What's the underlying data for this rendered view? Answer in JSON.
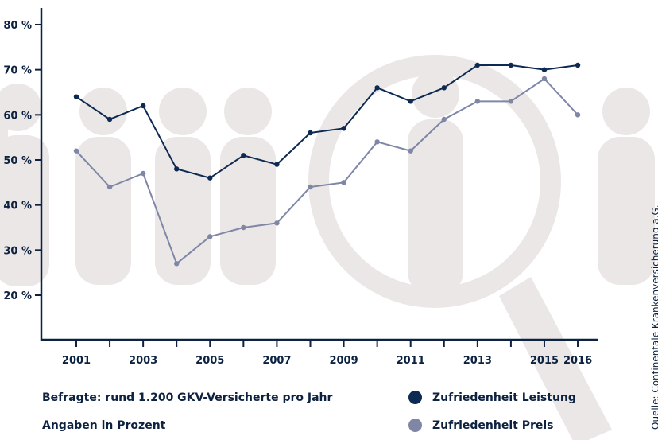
{
  "chart_data": {
    "type": "line",
    "x": [
      2001,
      2002,
      2003,
      2004,
      2005,
      2006,
      2007,
      2008,
      2009,
      2010,
      2011,
      2012,
      2013,
      2014,
      2015,
      2016
    ],
    "x_tick_labels": [
      "2001",
      "2003",
      "2005",
      "2007",
      "2009",
      "2011",
      "2013",
      "2015",
      "2016"
    ],
    "y_tick_labels": [
      "80 %",
      "70 %",
      "60 %",
      "50 %",
      "40 %",
      "30 %",
      "20 %"
    ],
    "y_ticks": [
      80,
      70,
      60,
      50,
      40,
      30,
      20
    ],
    "ylim": [
      10,
      82
    ],
    "grid": false,
    "legend_position": "bottom-right",
    "series": [
      {
        "name": "Zufriedenheit Leistung",
        "color": "#0d2a52",
        "values": [
          64,
          59,
          62,
          48,
          46,
          51,
          49,
          56,
          57,
          66,
          63,
          66,
          71,
          71,
          70,
          71
        ]
      },
      {
        "name": "Zufriedenheit Preis",
        "color": "#7f86a6",
        "values": [
          52,
          44,
          47,
          27,
          33,
          35,
          36,
          44,
          45,
          54,
          52,
          59,
          63,
          63,
          68,
          60
        ]
      }
    ]
  },
  "notes": {
    "respondents": "Befragte: rund 1.200 GKV-Versicherte pro Jahr",
    "units": "Angaben in Prozent"
  },
  "source": "Quelle: Continentale Krankenversicherung a.G.",
  "colors": {
    "axis": "#0d2240",
    "background_figures": "#ebe7e6"
  }
}
